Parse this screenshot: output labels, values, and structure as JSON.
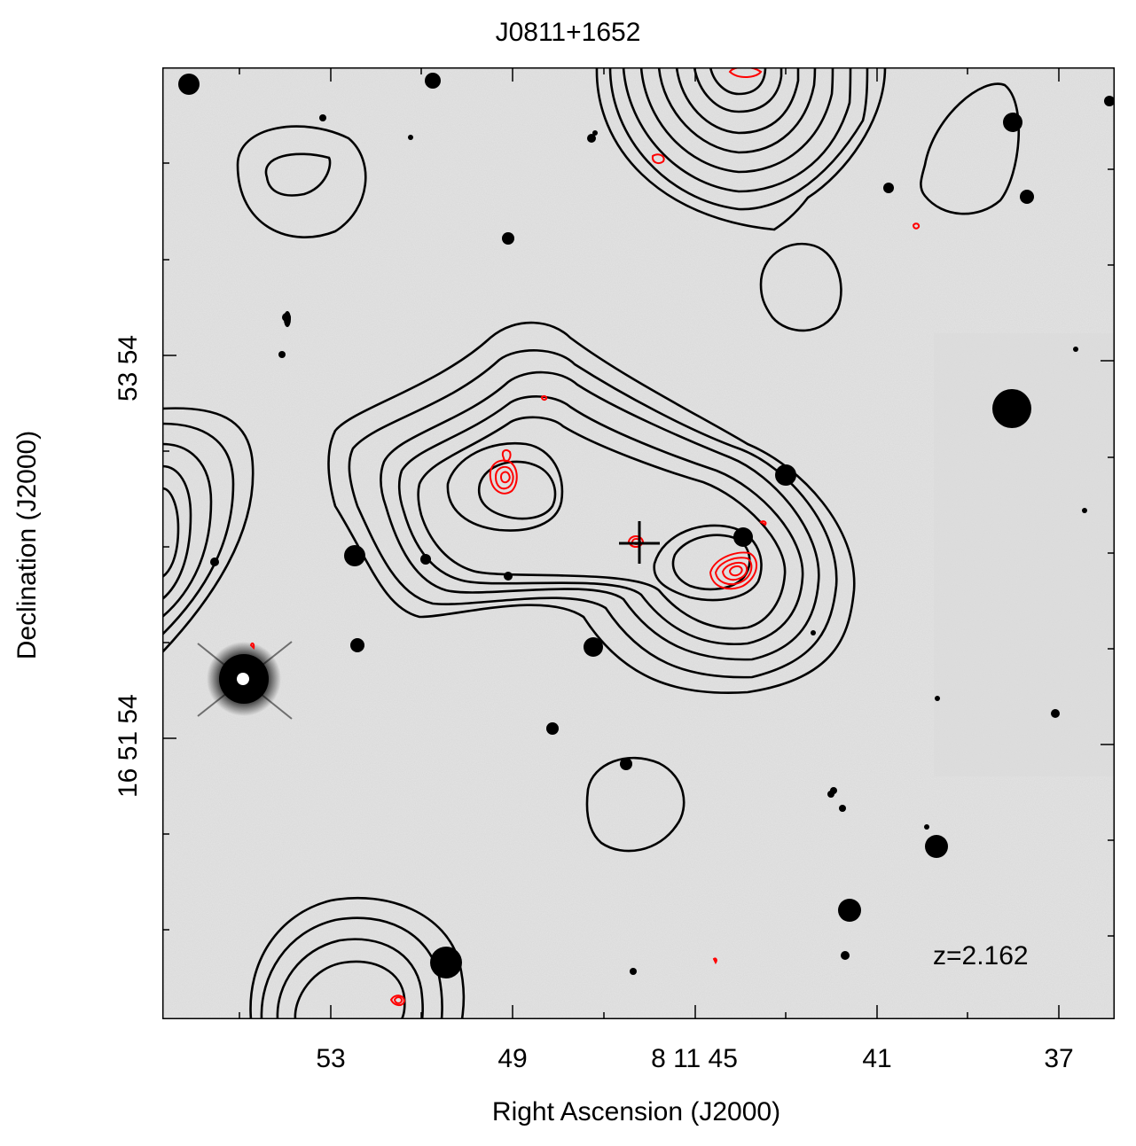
{
  "figure": {
    "title": "J0811+1652",
    "xlabel": "Right Ascension (J2000)",
    "ylabel": "Declination (J2000)",
    "redshift_label": "z=2.162"
  },
  "chart_data": {
    "type": "contour",
    "title": "J0811+1652",
    "xlabel": "Right Ascension (J2000)",
    "ylabel": "Declination (J2000)",
    "x_tick_labels": [
      "53",
      "49",
      "8 11 45",
      "41",
      "37"
    ],
    "y_tick_labels": [
      "16 51 54",
      "53 54"
    ],
    "annotations": [
      "z=2.162"
    ],
    "background": "greyscale optical image (inverted)",
    "contour_colors": {
      "low_resolution": "#000000",
      "high_resolution": "#ff0000"
    },
    "marker": "cross at optical source position"
  }
}
